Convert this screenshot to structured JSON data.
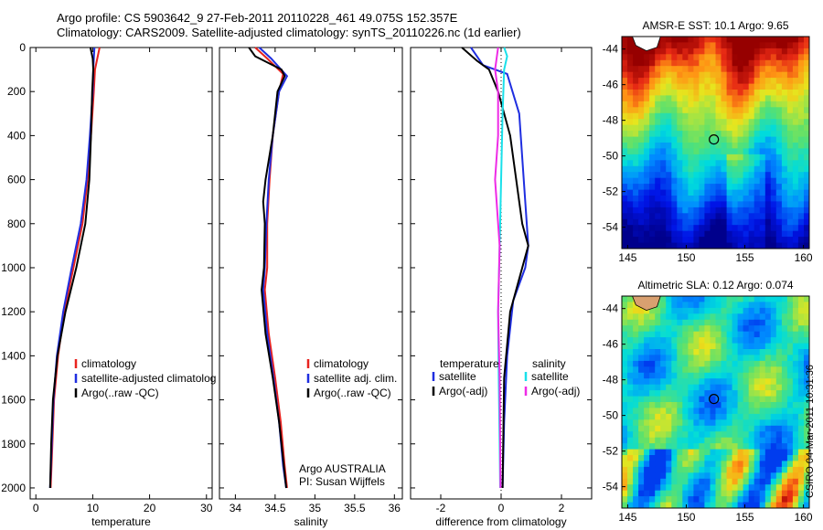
{
  "header": {
    "line1": "Argo profile: CS 5903642_9 27-Feb-2011 20110228_461 49.075S 152.357E",
    "line2": "Climatology: CARS2009. Satellite-adjusted climatology: synTS_20110226.nc (1d earlier)"
  },
  "side_label": "CSIRO 04-Mar-2011 10:31:36",
  "colors": {
    "climatology": "#e8231f",
    "satellite": "#1f2ee0",
    "argo": "#000000",
    "salinity_satellite": "#19e0ea",
    "salinity_argo": "#ee2be6"
  },
  "chart_data": [
    {
      "type": "line",
      "xlabel": "temperature",
      "xlim": [
        -1,
        31
      ],
      "ylim": [
        2050,
        0
      ],
      "xticks": [
        "0",
        "10",
        "20",
        "30"
      ],
      "yticks": [
        "0",
        "200",
        "400",
        "600",
        "800",
        "1000",
        "1200",
        "1400",
        "1600",
        "1800",
        "2000"
      ],
      "legend": [
        "climatology",
        "satellite-adjusted climatolog",
        "Argo(..raw -QC)"
      ],
      "series": [
        {
          "name": "climatology",
          "color": "#e8231f",
          "points": [
            [
              11.2,
              0
            ],
            [
              10.8,
              50
            ],
            [
              10.4,
              100
            ],
            [
              10.2,
              200
            ],
            [
              9.7,
              400
            ],
            [
              9.1,
              600
            ],
            [
              8.2,
              800
            ],
            [
              6.6,
              1000
            ],
            [
              5.0,
              1200
            ],
            [
              3.9,
              1400
            ],
            [
              3.2,
              1600
            ],
            [
              2.9,
              1800
            ],
            [
              2.6,
              2000
            ]
          ]
        },
        {
          "name": "satellite-adjusted climatolog",
          "color": "#1f2ee0",
          "points": [
            [
              10.3,
              0
            ],
            [
              10.2,
              50
            ],
            [
              10.1,
              100
            ],
            [
              10.0,
              200
            ],
            [
              9.5,
              400
            ],
            [
              8.9,
              600
            ],
            [
              7.9,
              800
            ],
            [
              6.3,
              1000
            ],
            [
              4.8,
              1200
            ],
            [
              3.7,
              1400
            ],
            [
              3.1,
              1600
            ],
            [
              2.8,
              1800
            ],
            [
              2.5,
              2000
            ]
          ]
        },
        {
          "name": "Argo(..raw -QC)",
          "color": "#000000",
          "points": [
            [
              9.6,
              0
            ],
            [
              10.0,
              50
            ],
            [
              10.1,
              100
            ],
            [
              9.9,
              200
            ],
            [
              9.7,
              400
            ],
            [
              9.4,
              600
            ],
            [
              8.7,
              800
            ],
            [
              7.1,
              1000
            ],
            [
              5.2,
              1200
            ],
            [
              3.8,
              1400
            ],
            [
              3.0,
              1600
            ],
            [
              2.7,
              1800
            ],
            [
              2.5,
              2000
            ]
          ]
        }
      ]
    },
    {
      "type": "line",
      "xlabel": "salinity",
      "xlim": [
        33.8,
        36.1
      ],
      "ylim": [
        2050,
        0
      ],
      "xticks": [
        "34",
        "34.5",
        "35",
        "35.5",
        "36"
      ],
      "legend": [
        "climatology",
        "satellite adj. clim.",
        "Argo(..raw -QC)"
      ],
      "annotation": [
        "Argo AUSTRALIA",
        "PI: Susan Wijffels"
      ],
      "series": [
        {
          "name": "climatology",
          "color": "#e8231f",
          "points": [
            [
              34.25,
              0
            ],
            [
              34.4,
              50
            ],
            [
              34.6,
              120
            ],
            [
              34.55,
              200
            ],
            [
              34.47,
              400
            ],
            [
              34.43,
              600
            ],
            [
              34.4,
              800
            ],
            [
              34.4,
              1000
            ],
            [
              34.37,
              1100
            ],
            [
              34.42,
              1300
            ],
            [
              34.5,
              1500
            ],
            [
              34.57,
              1700
            ],
            [
              34.62,
              1900
            ],
            [
              34.65,
              2000
            ]
          ]
        },
        {
          "name": "satellite adj. clim.",
          "color": "#1f2ee0",
          "points": [
            [
              34.3,
              0
            ],
            [
              34.45,
              50
            ],
            [
              34.65,
              130
            ],
            [
              34.55,
              200
            ],
            [
              34.47,
              400
            ],
            [
              34.42,
              600
            ],
            [
              34.39,
              800
            ],
            [
              34.37,
              1000
            ],
            [
              34.35,
              1100
            ],
            [
              34.4,
              1300
            ],
            [
              34.48,
              1500
            ],
            [
              34.55,
              1700
            ],
            [
              34.6,
              1900
            ],
            [
              34.64,
              2000
            ]
          ]
        },
        {
          "name": "Argo(..raw -QC)",
          "color": "#000000",
          "points": [
            [
              34.17,
              0
            ],
            [
              34.25,
              40
            ],
            [
              34.58,
              100
            ],
            [
              34.62,
              130
            ],
            [
              34.53,
              200
            ],
            [
              34.47,
              400
            ],
            [
              34.38,
              600
            ],
            [
              34.35,
              700
            ],
            [
              34.37,
              800
            ],
            [
              34.36,
              1000
            ],
            [
              34.33,
              1100
            ],
            [
              34.38,
              1300
            ],
            [
              34.47,
              1500
            ],
            [
              34.55,
              1700
            ],
            [
              34.61,
              1900
            ],
            [
              34.64,
              2000
            ]
          ]
        }
      ]
    },
    {
      "type": "line",
      "xlabel": "difference from climatology",
      "xlim": [
        -3,
        3
      ],
      "ylim": [
        2050,
        0
      ],
      "xticks": [
        "-2",
        "0",
        "2"
      ],
      "legend_left_title": "temperature",
      "legend_right_title": "salinity",
      "legend_left": [
        "satellite",
        "Argo(-adj)"
      ],
      "legend_right": [
        "satellite",
        "Argo(-adj)"
      ],
      "series": [
        {
          "name": "temperature satellite",
          "color": "#1f2ee0",
          "points": [
            [
              -1.0,
              0
            ],
            [
              -0.6,
              80
            ],
            [
              0.2,
              120
            ],
            [
              0.6,
              300
            ],
            [
              0.7,
              500
            ],
            [
              0.8,
              700
            ],
            [
              0.9,
              900
            ],
            [
              0.8,
              1000
            ],
            [
              0.4,
              1150
            ],
            [
              0.2,
              1400
            ],
            [
              0.1,
              1700
            ],
            [
              0.05,
              2000
            ]
          ]
        },
        {
          "name": "temperature Argo(-adj)",
          "color": "#000000",
          "points": [
            [
              -1.3,
              0
            ],
            [
              -0.8,
              60
            ],
            [
              -0.4,
              100
            ],
            [
              -0.1,
              200
            ],
            [
              0.3,
              400
            ],
            [
              0.5,
              600
            ],
            [
              0.7,
              800
            ],
            [
              0.9,
              900
            ],
            [
              0.7,
              1000
            ],
            [
              0.3,
              1200
            ],
            [
              0.1,
              1500
            ],
            [
              0.05,
              2000
            ]
          ]
        },
        {
          "name": "salinity satellite",
          "color": "#19e0ea",
          "points": [
            [
              0.1,
              0
            ],
            [
              0.2,
              40
            ],
            [
              0.1,
              100
            ],
            [
              0.05,
              300
            ],
            [
              0.0,
              600
            ],
            [
              -0.05,
              900
            ],
            [
              -0.1,
              1200
            ],
            [
              -0.08,
              1500
            ],
            [
              -0.05,
              1800
            ],
            [
              -0.03,
              2000
            ]
          ]
        },
        {
          "name": "salinity Argo(-adj)",
          "color": "#ee2be6",
          "points": [
            [
              -0.1,
              0
            ],
            [
              -0.2,
              100
            ],
            [
              -0.1,
              200
            ],
            [
              -0.1,
              400
            ],
            [
              -0.2,
              600
            ],
            [
              -0.05,
              900
            ],
            [
              -0.1,
              1200
            ],
            [
              -0.05,
              1500
            ],
            [
              -0.03,
              1800
            ],
            [
              -0.02,
              2000
            ]
          ]
        }
      ]
    },
    {
      "type": "heatmap",
      "title": "AMSR-E SST: 10.1 Argo: 9.65",
      "xlim": [
        144.5,
        160.5
      ],
      "ylim": [
        -55.2,
        -43.3
      ],
      "xticks": [
        "145",
        "150",
        "155",
        "160"
      ],
      "yticks": [
        "-44",
        "-46",
        "-48",
        "-50",
        "-52",
        "-54"
      ],
      "marker": {
        "lon": 152.357,
        "lat": -49.075
      }
    },
    {
      "type": "heatmap",
      "title": "Altimetric SLA: 0.12 Argo: 0.074",
      "xlim": [
        144.5,
        160.5
      ],
      "ylim": [
        -55.2,
        -43.3
      ],
      "xticks": [
        "145",
        "150",
        "155",
        "160"
      ],
      "yticks": [
        "-44",
        "-46",
        "-48",
        "-50",
        "-52",
        "-54"
      ],
      "marker": {
        "lon": 152.357,
        "lat": -49.075
      }
    }
  ]
}
